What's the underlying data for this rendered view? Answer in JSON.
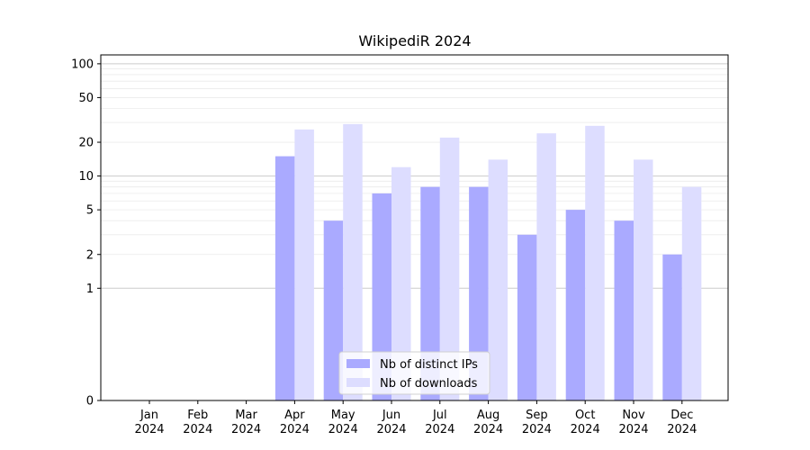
{
  "chart_data": {
    "type": "bar",
    "title": "WikipediR 2024",
    "xlabel": "",
    "ylabel": "",
    "scale": "symlog",
    "ylim": [
      0,
      120
    ],
    "yticks": [
      0,
      1,
      2,
      5,
      10,
      20,
      50,
      100
    ],
    "categories": [
      [
        "Jan",
        "2024"
      ],
      [
        "Feb",
        "2024"
      ],
      [
        "Mar",
        "2024"
      ],
      [
        "Apr",
        "2024"
      ],
      [
        "May",
        "2024"
      ],
      [
        "Jun",
        "2024"
      ],
      [
        "Jul",
        "2024"
      ],
      [
        "Aug",
        "2024"
      ],
      [
        "Sep",
        "2024"
      ],
      [
        "Oct",
        "2024"
      ],
      [
        "Nov",
        "2024"
      ],
      [
        "Dec",
        "2024"
      ]
    ],
    "series": [
      {
        "name": "Nb of distinct IPs",
        "color": "#aaaaff",
        "values": [
          0,
          0,
          0,
          15,
          4,
          7,
          8,
          8,
          3,
          5,
          4,
          2
        ]
      },
      {
        "name": "Nb of downloads",
        "color": "#ddddff",
        "values": [
          0,
          0,
          0,
          26,
          29,
          12,
          22,
          14,
          24,
          28,
          14,
          8
        ]
      }
    ],
    "legend": "bottom-center",
    "grid": "y"
  }
}
